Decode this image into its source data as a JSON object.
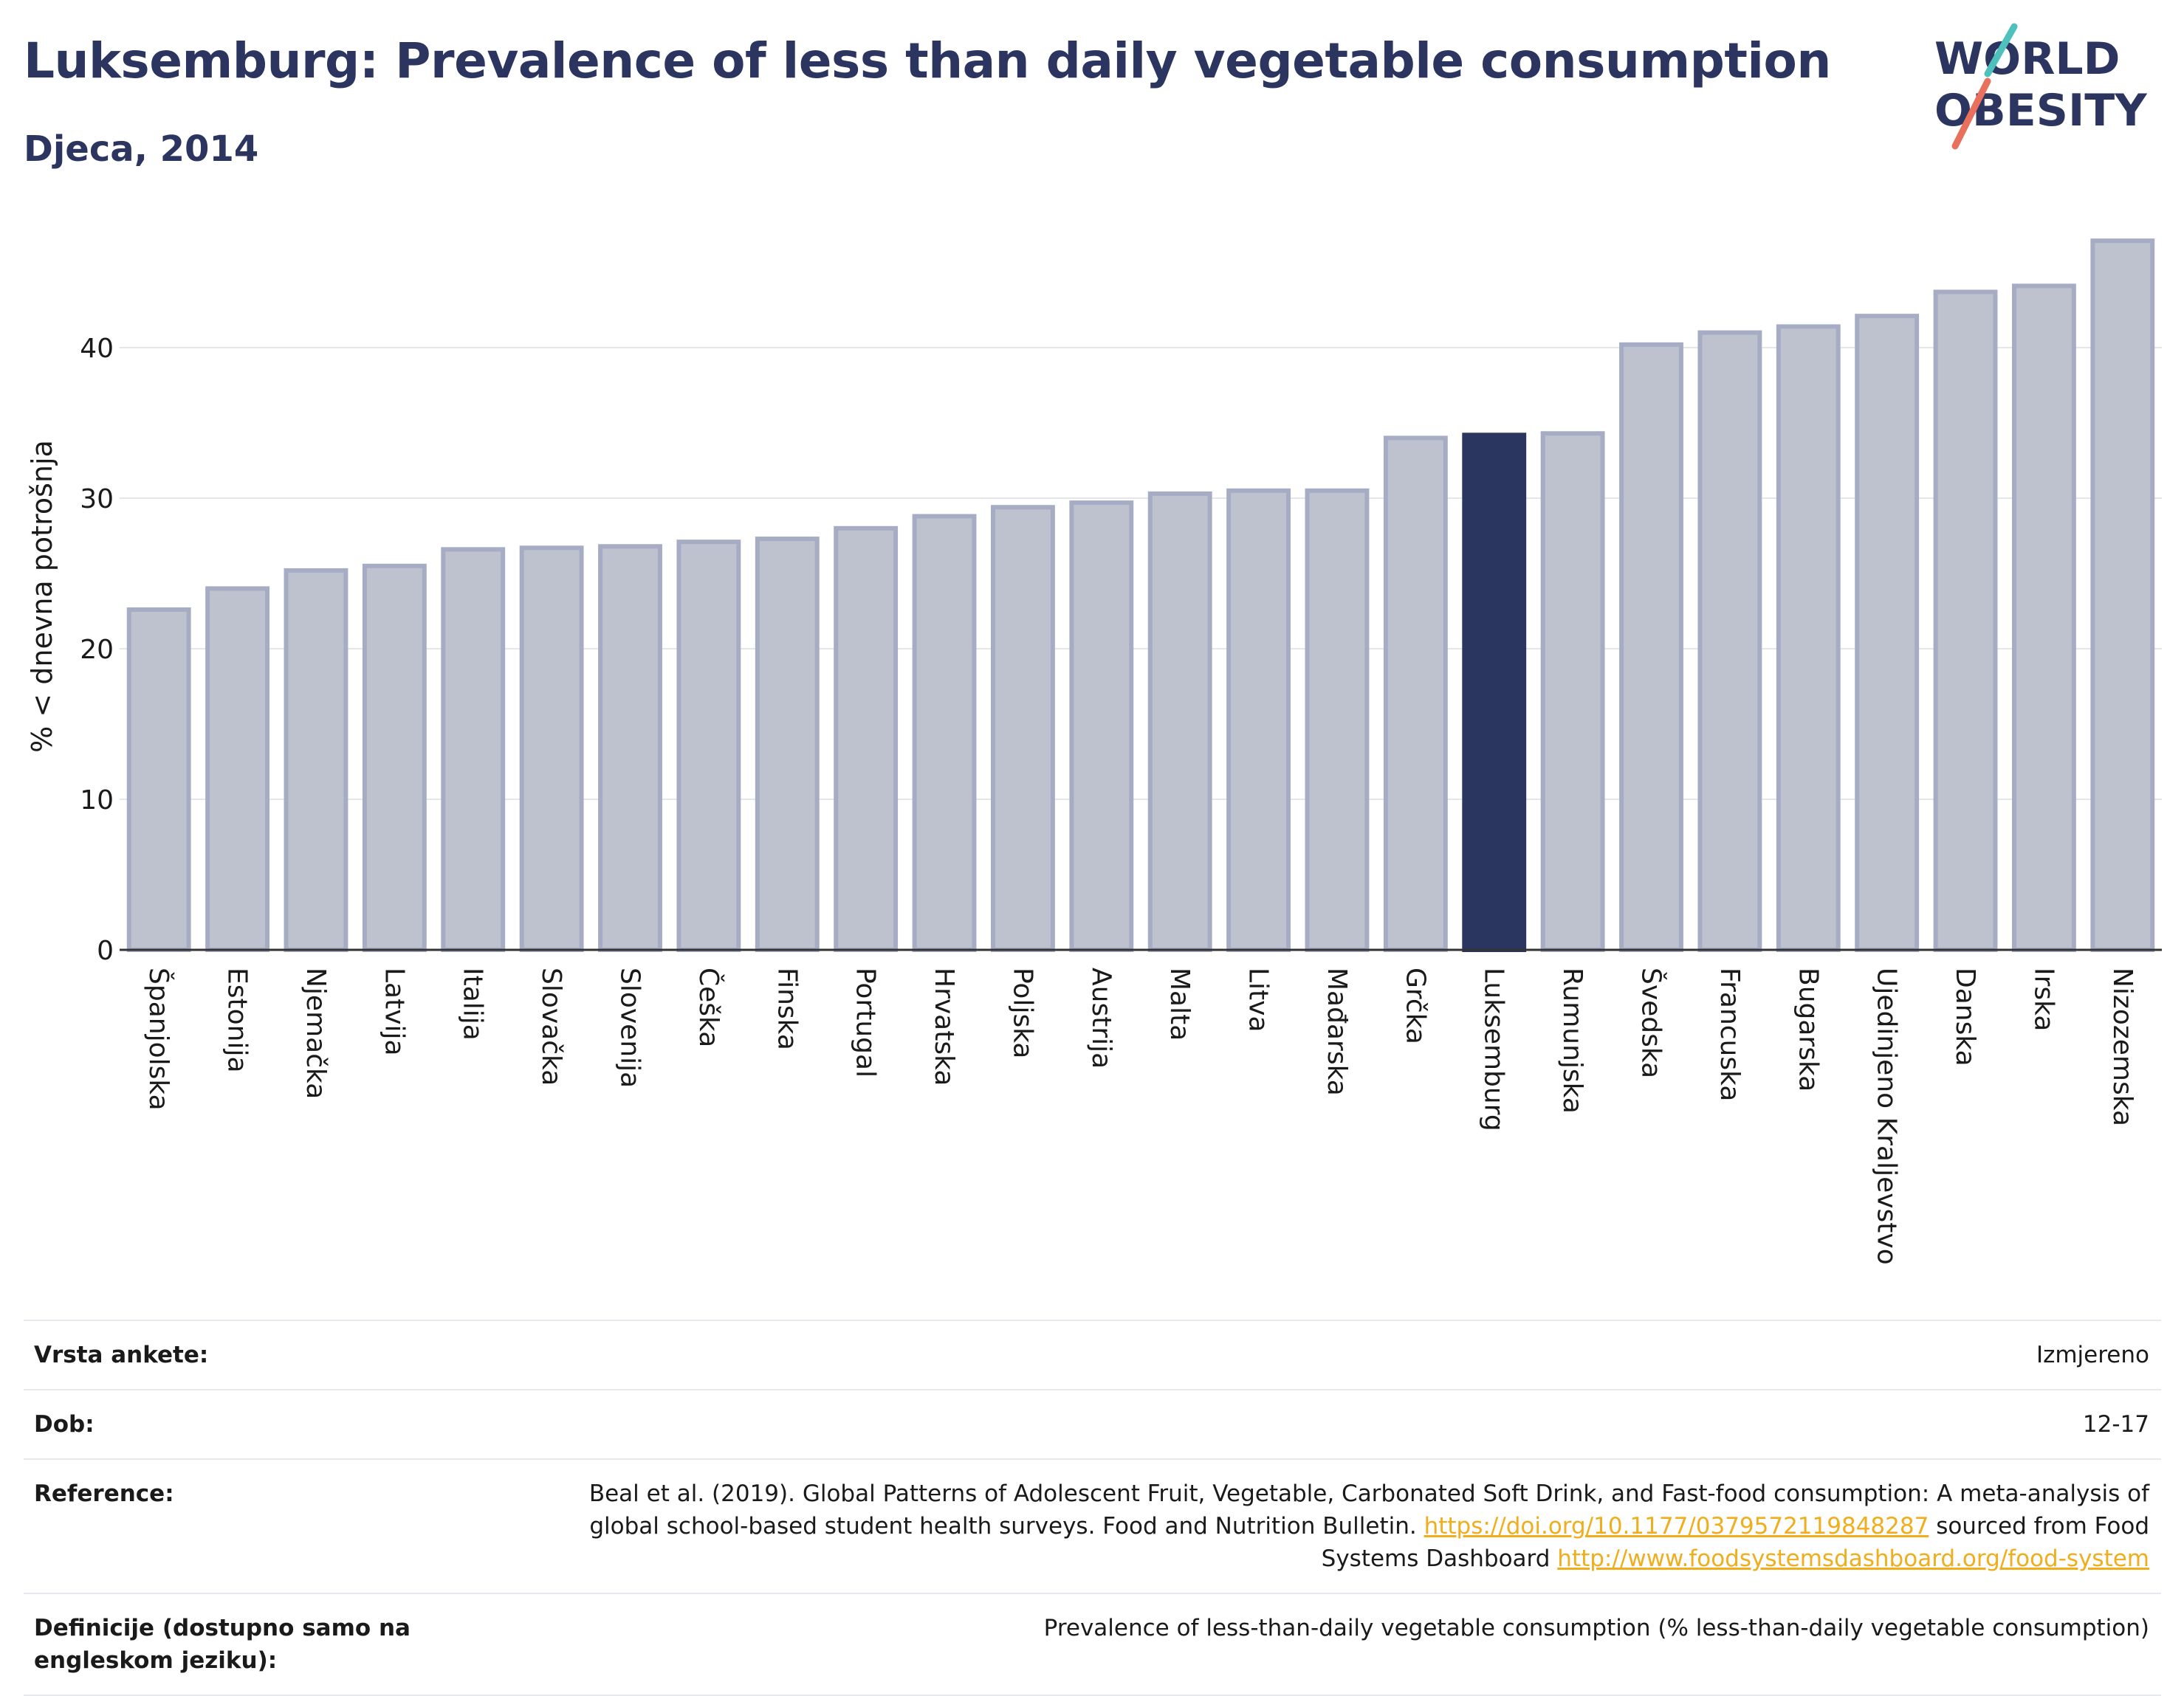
{
  "header": {
    "title": "Luksemburg: Prevalence of less than daily vegetable consumption",
    "subtitle": "Djeca, 2014"
  },
  "logo": {
    "line1": "WORLD",
    "line2": "OBESITY",
    "slash_colors": [
      "#4fc1bd",
      "#e8705c"
    ]
  },
  "colors": {
    "bar": "#bec2cf",
    "bar_border": "#a6acc3",
    "highlight": "#2a3560",
    "grid": "#e5e6ea",
    "axis": "#333333"
  },
  "chart_data": {
    "type": "bar",
    "ylabel": "% < dnevna potrošnja",
    "ylim": [
      0,
      48
    ],
    "yticks": [
      0,
      10,
      20,
      30,
      40
    ],
    "highlight": "Luksemburg",
    "categories": [
      "Španjolska",
      "Estonija",
      "Njemačka",
      "Latvija",
      "Italija",
      "Slovačka",
      "Slovenija",
      "Češka",
      "Finska",
      "Portugal",
      "Hrvatska",
      "Poljska",
      "Austrija",
      "Malta",
      "Litva",
      "Mađarska",
      "Grčka",
      "Luksemburg",
      "Rumunjska",
      "Švedska",
      "Francuska",
      "Bugarska",
      "Ujedinjeno Kraljevstvo",
      "Danska",
      "Irska",
      "Nizozemska"
    ],
    "values": [
      22.6,
      24.0,
      25.2,
      25.5,
      26.6,
      26.7,
      26.8,
      27.1,
      27.3,
      28.0,
      28.8,
      29.4,
      29.7,
      30.3,
      30.5,
      30.5,
      34.0,
      34.2,
      34.3,
      40.2,
      41.0,
      41.4,
      42.1,
      43.7,
      44.1,
      47.1
    ]
  },
  "meta": {
    "survey_label": "Vrsta ankete:",
    "survey_value": "Izmjereno",
    "age_label": "Dob:",
    "age_value": "12-17",
    "reference_label": "Reference:",
    "reference_text": "Beal et al. (2019). Global Patterns of Adolescent Fruit, Vegetable, Carbonated Soft Drink, and Fast-food consumption: A meta-analysis of global school-based student health surveys. Food and Nutrition Bulletin.",
    "reference_link1": "https://doi.org/10.1177/0379572119848287",
    "reference_mid": "sourced from Food Systems Dashboard",
    "reference_link2": "http://www.foodsystemsdashboard.org/food-system",
    "definition_label": "Definicije (dostupno samo na engleskom jeziku):",
    "definition_value": "Prevalence of less-than-daily vegetable consumption (% less-than-daily vegetable consumption)"
  }
}
